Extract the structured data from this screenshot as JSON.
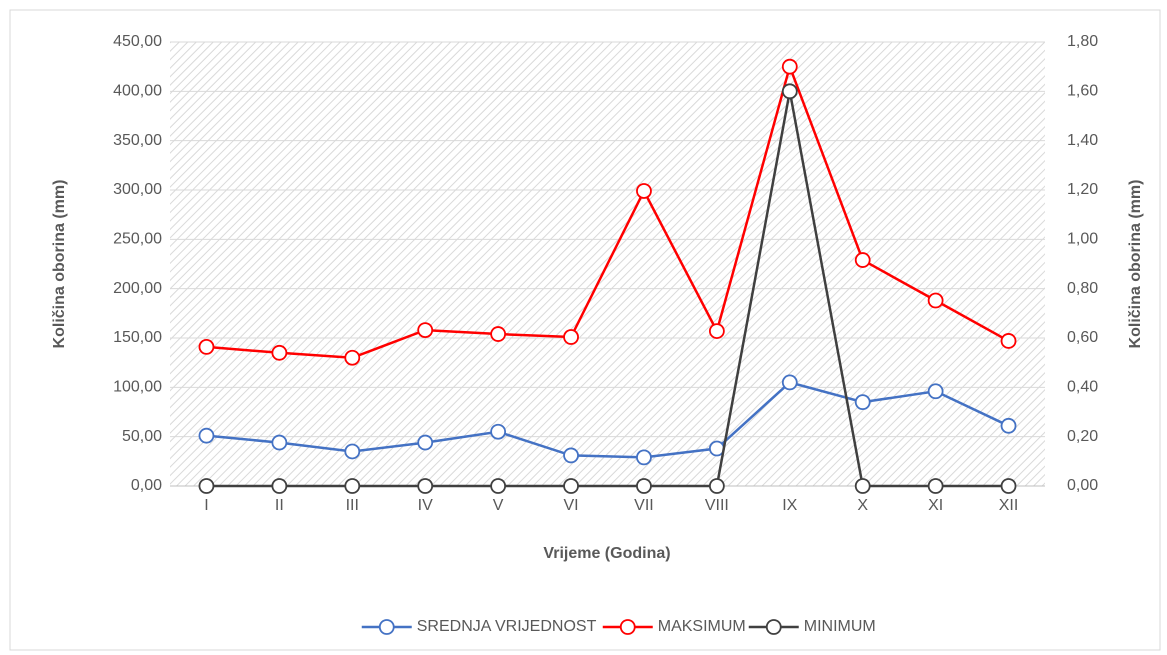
{
  "chart_data": {
    "type": "line",
    "xlabel": "Vrijeme (Godina)",
    "ylabel": "Količina oborina (mm)",
    "y2label": "Količina oborina (mm)",
    "categories": [
      "I",
      "II",
      "III",
      "IV",
      "V",
      "VI",
      "VII",
      "VIII",
      "IX",
      "X",
      "XI",
      "XII"
    ],
    "series": [
      {
        "name": "SREDNJA VRIJEDNOST",
        "color": "#4472c4",
        "values": [
          51,
          44,
          35,
          44,
          55,
          31,
          29,
          38,
          105,
          85,
          96,
          61
        ]
      },
      {
        "name": "MAKSIMUM",
        "color": "#ff0000",
        "values": [
          141,
          135,
          130,
          158,
          154,
          151,
          299,
          157,
          425,
          229,
          188,
          147
        ]
      },
      {
        "name": "MINIMUM",
        "color": "#404040",
        "axis": "y2",
        "values": [
          0,
          0,
          0,
          0,
          0,
          0,
          0,
          0,
          1.6,
          0,
          0,
          0
        ]
      }
    ],
    "ylim": [
      0,
      450
    ],
    "yticks": [
      {
        "value": 0,
        "label": "0,00"
      },
      {
        "value": 50,
        "label": "50,00"
      },
      {
        "value": 100,
        "label": "100,00"
      },
      {
        "value": 150,
        "label": "150,00"
      },
      {
        "value": 200,
        "label": "200,00"
      },
      {
        "value": 250,
        "label": "250,00"
      },
      {
        "value": 300,
        "label": "300,00"
      },
      {
        "value": 350,
        "label": "350,00"
      },
      {
        "value": 400,
        "label": "400,00"
      },
      {
        "value": 450,
        "label": "450,00"
      }
    ],
    "y2lim": [
      0,
      1.8
    ],
    "y2ticks": [
      {
        "value": 0,
        "label": "0,00"
      },
      {
        "value": 0.2,
        "label": "0,20"
      },
      {
        "value": 0.4,
        "label": "0,40"
      },
      {
        "value": 0.6,
        "label": "0,60"
      },
      {
        "value": 0.8,
        "label": "0,80"
      },
      {
        "value": 1.0,
        "label": "1,00"
      },
      {
        "value": 1.2,
        "label": "1,20"
      },
      {
        "value": 1.4,
        "label": "1,40"
      },
      {
        "value": 1.6,
        "label": "1,60"
      },
      {
        "value": 1.8,
        "label": "1,80"
      }
    ],
    "grid": true,
    "legend": "bottom"
  }
}
